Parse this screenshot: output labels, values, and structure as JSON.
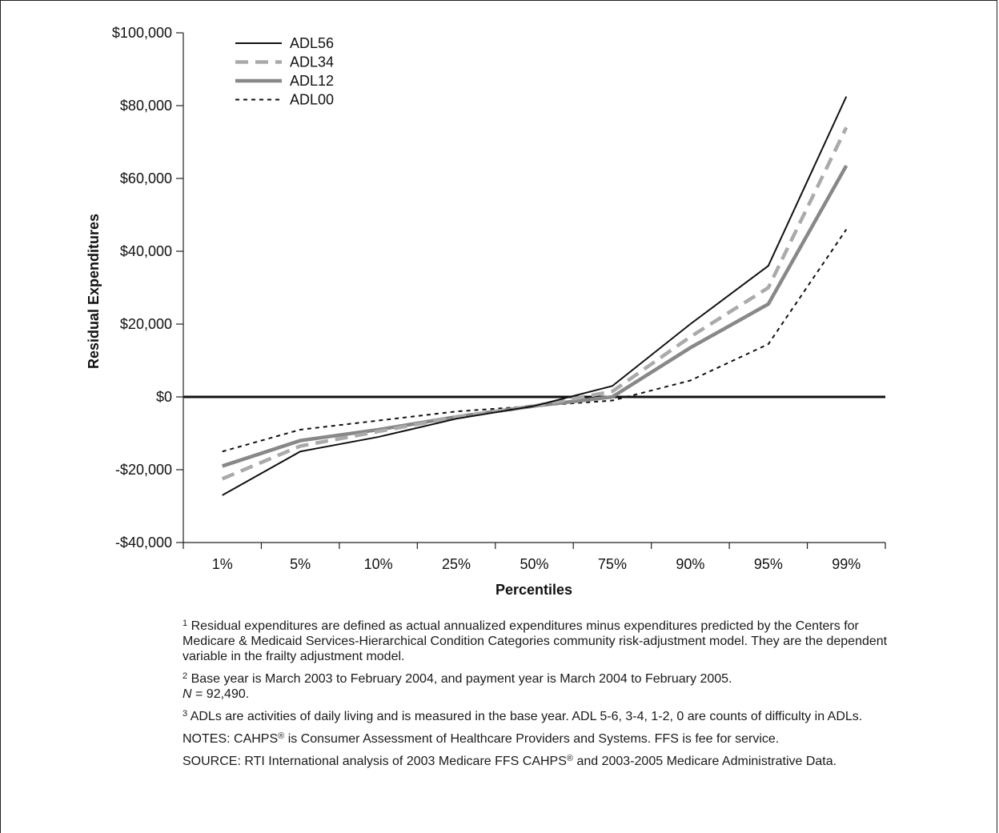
{
  "chart_data": {
    "type": "line",
    "ylabel": "Residual Expenditures",
    "xlabel": "Percentiles",
    "categories": [
      "1%",
      "5%",
      "10%",
      "25%",
      "50%",
      "75%",
      "90%",
      "95%",
      "99%"
    ],
    "ylim": [
      -40000,
      100000
    ],
    "yticks": [
      100000,
      80000,
      60000,
      40000,
      20000,
      0,
      -20000,
      -40000
    ],
    "ytick_labels": [
      "$100,000",
      "$80,000",
      "$60,000",
      "$40,000",
      "$20,000",
      "$0",
      "-$20,000",
      "-$40,000"
    ],
    "legend_position": "top-left",
    "zero_line": true,
    "series": [
      {
        "name": "ADL56",
        "style": "solid-thin",
        "color": "#111111",
        "values": [
          -27000,
          -15000,
          -11000,
          -6000,
          -2500,
          3000,
          20000,
          36000,
          82500
        ]
      },
      {
        "name": "ADL34",
        "style": "dashed-thick",
        "color": "#aaaaaa",
        "values": [
          -22500,
          -13500,
          -9500,
          -5500,
          -2500,
          1500,
          16500,
          30000,
          74000
        ]
      },
      {
        "name": "ADL12",
        "style": "solid-thick",
        "color": "#888888",
        "values": [
          -19000,
          -12000,
          -9000,
          -5500,
          -2500,
          0,
          13500,
          25500,
          63500
        ]
      },
      {
        "name": "ADL00",
        "style": "dotted-thin",
        "color": "#111111",
        "values": [
          -15000,
          -9000,
          -6500,
          -4000,
          -2500,
          -1000,
          4500,
          14500,
          46000
        ]
      }
    ]
  },
  "notes": {
    "n1_sup": "1",
    "n1": " Residual expenditures are defined as actual annualized expenditures minus expenditures predicted by the Centers for Medicare & Medicaid Services-Hierarchical Condition Categories community risk-adjustment model. They are the dependent variable in the frailty adjustment model.",
    "n2_sup": "2",
    "n2": " Base year is March 2003 to February 2004, and payment year is March 2004 to February 2005.",
    "n2b_italic": "N",
    "n2b": " = 92,490.",
    "n3_sup": "3",
    "n3": " ADLs are activities of daily living and is measured in the base year. ADL 5-6, 3-4, 1-2, 0 are counts of difficulty in ADLs.",
    "n4_a": "NOTES: CAHPS",
    "n4_reg": "®",
    "n4_b": " is Consumer Assessment of Healthcare Providers and Systems. FFS is fee for service.",
    "n5_a": "SOURCE: RTI International analysis of 2003 Medicare FFS CAHPS",
    "n5_reg": "®",
    "n5_b": " and 2003-2005 Medicare Administrative Data."
  }
}
